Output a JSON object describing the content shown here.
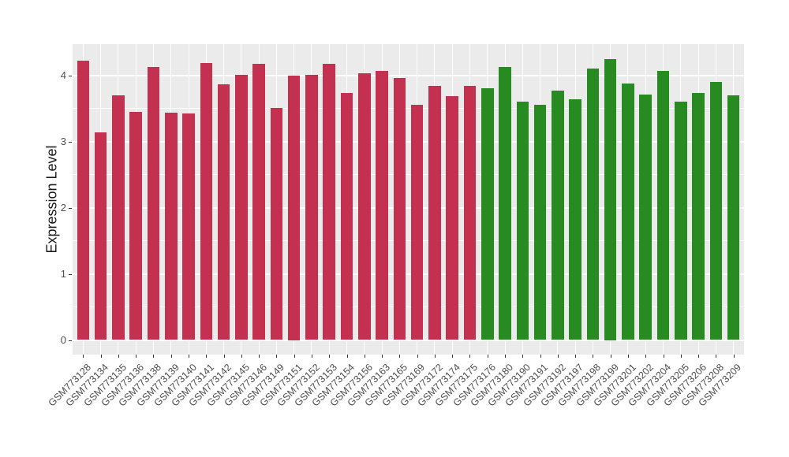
{
  "chart_data": {
    "type": "bar",
    "title": "",
    "xlabel": "",
    "ylabel": "Expression Level",
    "ylim": [
      0,
      4.47
    ],
    "ytick_labels": [
      "0",
      "1",
      "2",
      "3",
      "4"
    ],
    "ytick_values": [
      0,
      1,
      2,
      3,
      4
    ],
    "minor_gridline_values": [
      0.5,
      1.5,
      2.5,
      3.5
    ],
    "grid": "white major and minor gridlines on light gray panel",
    "legend_position": "none",
    "categories": [
      "GSM773128",
      "GSM773134",
      "GSM773135",
      "GSM773136",
      "GSM773138",
      "GSM773139",
      "GSM773140",
      "GSM773141",
      "GSM773142",
      "GSM773145",
      "GSM773146",
      "GSM773149",
      "GSM773151",
      "GSM773152",
      "GSM773153",
      "GSM773154",
      "GSM773156",
      "GSM773163",
      "GSM773165",
      "GSM773169",
      "GSM773172",
      "GSM773174",
      "GSM773175",
      "GSM773176",
      "GSM773180",
      "GSM773190",
      "GSM773191",
      "GSM773192",
      "GSM773197",
      "GSM773198",
      "GSM773199",
      "GSM773201",
      "GSM773202",
      "GSM773204",
      "GSM773205",
      "GSM773206",
      "GSM773208",
      "GSM773209"
    ],
    "values": [
      4.22,
      3.14,
      3.7,
      3.45,
      4.13,
      3.43,
      3.42,
      4.18,
      3.86,
      4.01,
      4.17,
      3.51,
      4.0,
      4.01,
      4.17,
      3.73,
      4.03,
      4.07,
      3.96,
      3.55,
      3.84,
      3.69,
      3.84,
      3.8,
      4.13,
      3.6,
      3.55,
      3.77,
      3.64,
      4.1,
      4.25,
      3.87,
      3.71,
      4.06,
      3.6,
      3.73,
      3.9,
      3.7
    ],
    "bar_color_keys": [
      "crimson",
      "crimson",
      "crimson",
      "crimson",
      "crimson",
      "crimson",
      "crimson",
      "crimson",
      "crimson",
      "crimson",
      "crimson",
      "crimson",
      "crimson",
      "crimson",
      "crimson",
      "crimson",
      "crimson",
      "crimson",
      "crimson",
      "crimson",
      "crimson",
      "crimson",
      "crimson",
      "green",
      "green",
      "green",
      "green",
      "green",
      "green",
      "green",
      "green",
      "green",
      "green",
      "green",
      "green",
      "green",
      "green",
      "green"
    ],
    "palette": {
      "crimson": "#C43150",
      "green": "#278B22"
    },
    "panel_background": "#EBEBEB",
    "gridline_color": "#FFFFFF",
    "tick_label_color": "#4D4D4D",
    "axis_title_color": "#1A1A1A"
  }
}
